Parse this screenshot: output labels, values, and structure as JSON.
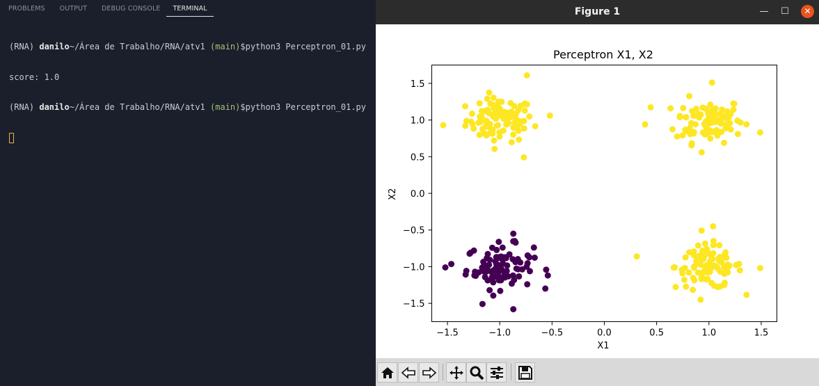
{
  "panel": {
    "tabs": [
      "PROBLEMS",
      "OUTPUT",
      "DEBUG CONSOLE",
      "TERMINAL"
    ],
    "active_tab": "TERMINAL"
  },
  "terminal": {
    "lines": [
      {
        "env": "(RNA) ",
        "user": "danilo",
        "path": "~/Área de Trabalho/RNA/atv1 ",
        "branch": "(main)",
        "prompt": "$",
        "cmd": "python3 Perceptron_01.py"
      },
      {
        "output": "score: 1.0"
      },
      {
        "env": "(RNA) ",
        "user": "danilo",
        "path": "~/Área de Trabalho/RNA/atv1 ",
        "branch": "(main)",
        "prompt": "$",
        "cmd": "python3 Perceptron_01.py"
      }
    ]
  },
  "window": {
    "title": "Figure 1",
    "minimize_label": "—",
    "maximize_label": "☐",
    "close_label": "✕"
  },
  "toolbar": {
    "buttons": [
      "home-icon",
      "back-icon",
      "forward-icon",
      "pan-icon",
      "zoom-icon",
      "configure-subplots-icon",
      "save-icon"
    ]
  },
  "chart_data": {
    "type": "scatter",
    "title": "Perceptron X1, X2",
    "xlabel": "X1",
    "ylabel": "X2",
    "xlim": [
      -1.65,
      1.65
    ],
    "ylim": [
      -1.75,
      1.75
    ],
    "xticks": [
      -1.5,
      -1.0,
      -0.5,
      0.0,
      0.5,
      1.0,
      1.5
    ],
    "xtick_labels": [
      "−1.5",
      "−1.0",
      "−0.5",
      "0.0",
      "0.5",
      "1.0",
      "1.5"
    ],
    "yticks": [
      -1.5,
      -1.0,
      -0.5,
      0.0,
      0.5,
      1.0,
      1.5
    ],
    "ytick_labels": [
      "−1.5",
      "−1.0",
      "−0.5",
      "0.0",
      "0.5",
      "1.0",
      "1.5"
    ],
    "grid": false,
    "colors": {
      "class_0": "#440154",
      "class_1": "#fde725"
    },
    "clusters": [
      {
        "class": 1,
        "center": [
          -1.0,
          1.0
        ],
        "count": 100,
        "note_extremes": [
          [
            -1.54,
            0.93
          ],
          [
            -0.74,
            1.61
          ],
          [
            -0.52,
            1.06
          ],
          [
            -0.77,
            0.49
          ]
        ]
      },
      {
        "class": 1,
        "center": [
          1.0,
          1.0
        ],
        "count": 100,
        "note_extremes": [
          [
            0.39,
            0.94
          ],
          [
            1.49,
            0.83
          ],
          [
            1.03,
            1.51
          ],
          [
            0.93,
            0.56
          ]
        ]
      },
      {
        "class": 0,
        "center": [
          -1.0,
          -1.0
        ],
        "count": 100,
        "note_extremes": [
          [
            -1.52,
            -1.01
          ],
          [
            -0.87,
            -1.58
          ],
          [
            -0.54,
            -1.12
          ],
          [
            -0.87,
            -0.55
          ]
        ]
      },
      {
        "class": 1,
        "center": [
          1.0,
          -1.0
        ],
        "count": 100,
        "note_extremes": [
          [
            0.31,
            -0.86
          ],
          [
            1.49,
            -1.02
          ],
          [
            1.04,
            -0.45
          ],
          [
            0.92,
            -1.45
          ]
        ]
      }
    ]
  }
}
